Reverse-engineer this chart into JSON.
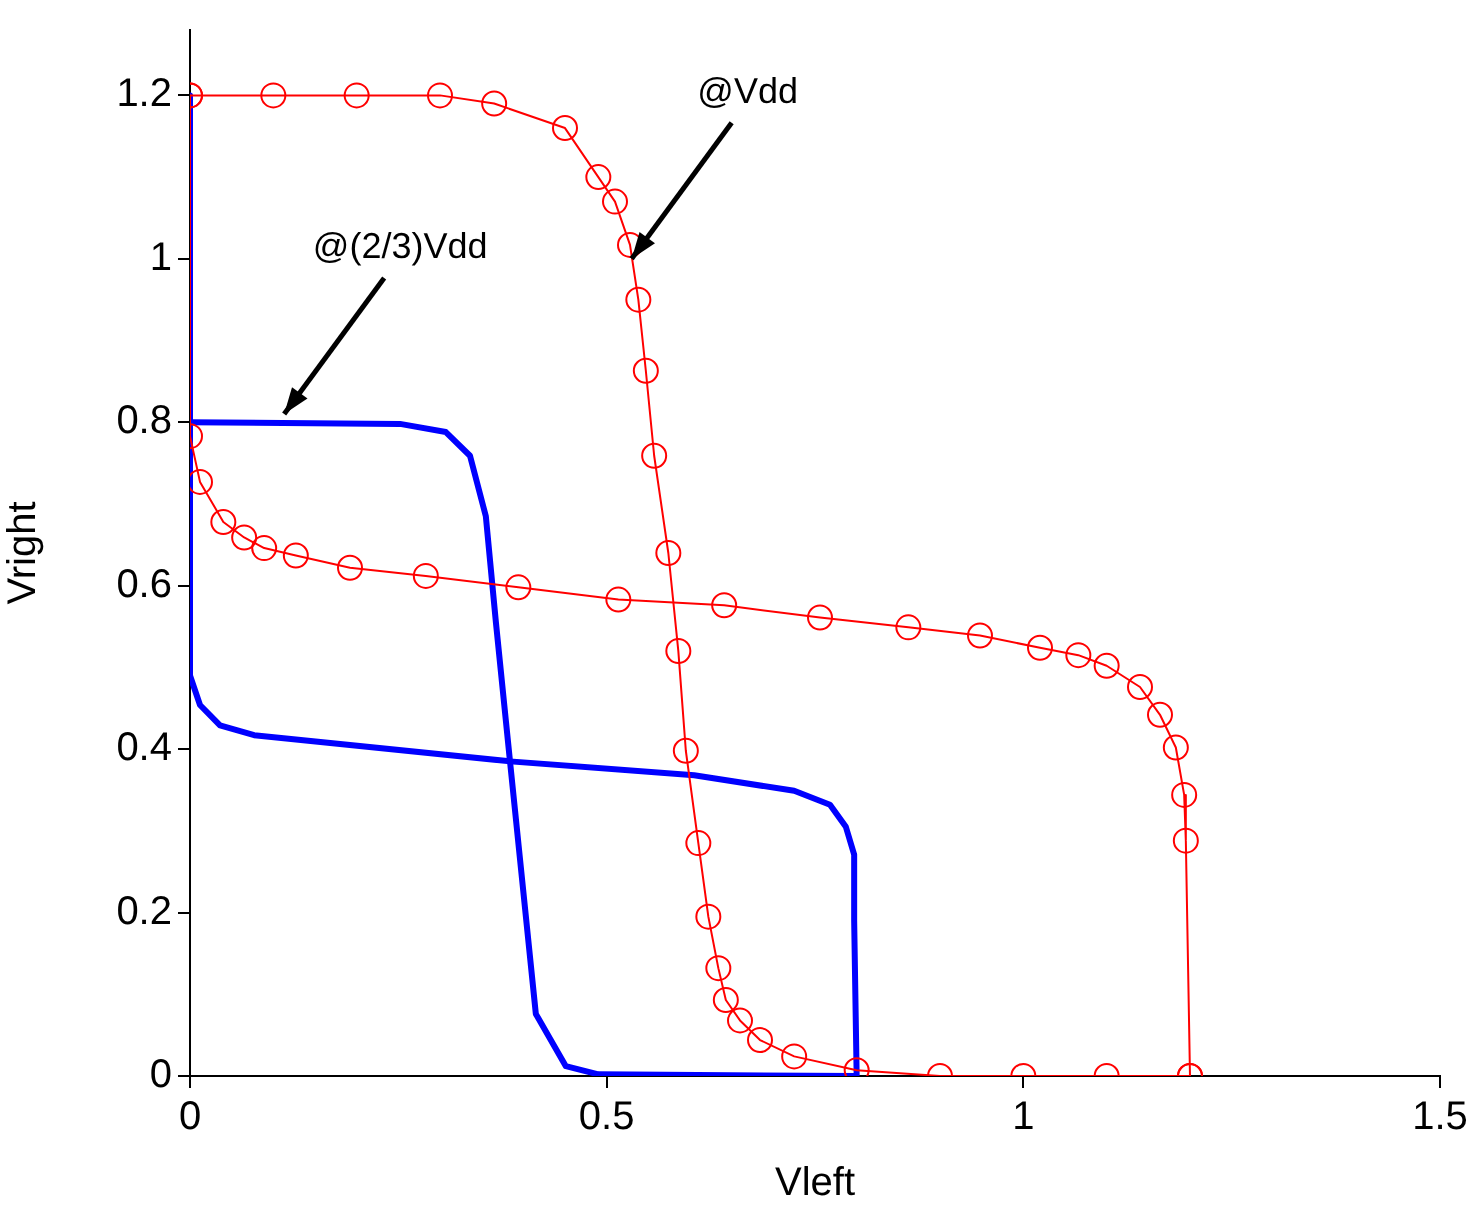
{
  "chart_data": {
    "type": "line",
    "xlabel": "Vleft",
    "ylabel": "Vright",
    "xlim": [
      0,
      1.5
    ],
    "ylim": [
      0,
      1.28
    ],
    "xticks": [
      0,
      0.5,
      1,
      1.5
    ],
    "yticks": [
      0,
      0.2,
      0.4,
      0.6,
      0.8,
      1,
      1.2
    ],
    "grid": false,
    "legend": false,
    "annotations": [
      {
        "text": "@Vdd",
        "x": 0.53,
        "y": 1.0
      },
      {
        "text": "@(2/3)Vdd",
        "x": 0.113,
        "y": 0.81
      }
    ],
    "series": [
      {
        "color": "#ff0000",
        "marker": "circle",
        "x": [
          0,
          0.1,
          0.2,
          0.3,
          0.365,
          0.45,
          0.49,
          0.51,
          0.528,
          0.538,
          0.547,
          0.557,
          0.574,
          0.586,
          0.595,
          0.61,
          0.622,
          0.634,
          0.643,
          0.66,
          0.684,
          0.725,
          0.8,
          0.9,
          1.0,
          1.1,
          1.2
        ],
        "values": [
          1.2,
          1.2,
          1.2,
          1.2,
          1.19,
          1.16,
          1.1,
          1.07,
          1.017,
          0.95,
          0.863,
          0.759,
          0.64,
          0.52,
          0.398,
          0.285,
          0.195,
          0.132,
          0.093,
          0.068,
          0.044,
          0.024,
          0.007,
          0,
          0,
          0,
          0
        ]
      },
      {
        "color": "#ff0000",
        "marker": "circle",
        "x": [
          0,
          0,
          0.012,
          0.04,
          0.065,
          0.089,
          0.127,
          0.192,
          0.283,
          0.394,
          0.514,
          0.641,
          0.756,
          0.862,
          0.948,
          1.02,
          1.066,
          1.1,
          1.14,
          1.164,
          1.183,
          1.193,
          1.195,
          1.2
        ],
        "values": [
          1.2,
          0.783,
          0.727,
          0.678,
          0.659,
          0.646,
          0.637,
          0.622,
          0.612,
          0.598,
          0.583,
          0.576,
          0.561,
          0.549,
          0.539,
          0.524,
          0.515,
          0.502,
          0.476,
          0.442,
          0.402,
          0.344,
          0.288,
          0
        ]
      },
      {
        "color": "#0000ff",
        "marker": "none",
        "x": [
          0,
          0.252,
          0.307,
          0.336,
          0.355,
          0.367,
          0.384,
          0.415,
          0.451,
          0.49,
          0.8
        ],
        "values": [
          0.8,
          0.798,
          0.788,
          0.759,
          0.685,
          0.556,
          0.385,
          0.076,
          0.012,
          0.002,
          0
        ]
      },
      {
        "color": "#0000ff",
        "marker": "none",
        "x": [
          0,
          0,
          0.012,
          0.036,
          0.077,
          0.384,
          0.605,
          0.725,
          0.768,
          0.787,
          0.797,
          0.797,
          0.8
        ],
        "values": [
          1.2,
          0.49,
          0.454,
          0.429,
          0.417,
          0.385,
          0.368,
          0.349,
          0.332,
          0.305,
          0.271,
          0.19,
          0
        ]
      }
    ]
  }
}
